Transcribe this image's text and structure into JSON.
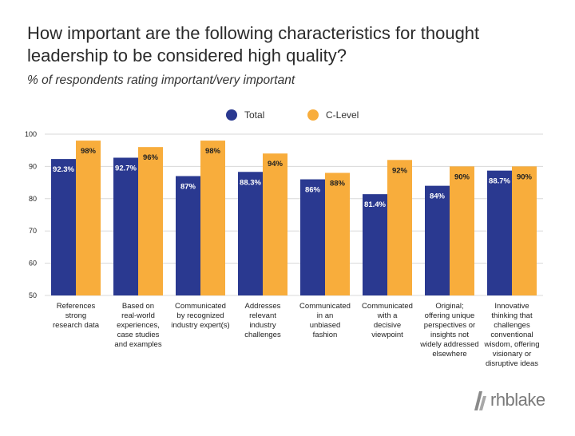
{
  "title": "How important are the following characteristics for thought leadership to be considered high quality?",
  "subtitle": "% of respondents rating important/very important",
  "brand": "rhblake",
  "colors": {
    "total": "#2a3990",
    "clevel": "#f8ad3c",
    "grid": "#d8d8d8"
  },
  "chart_data": {
    "type": "bar",
    "ylim": [
      50,
      100
    ],
    "yticks": [
      "50",
      "60",
      "70",
      "80",
      "90",
      "100"
    ],
    "categories": [
      [
        "References",
        "strong",
        "research data"
      ],
      [
        "Based on",
        "real-world",
        "experiences,",
        "case studies",
        "and examples"
      ],
      [
        "Communicated",
        "by recognized",
        "industry expert(s)"
      ],
      [
        "Addresses",
        "relevant",
        "industry",
        "challenges"
      ],
      [
        "Communicated",
        "in an",
        "unbiased",
        "fashion"
      ],
      [
        "Communicated",
        "with a",
        "decisive",
        "viewpoint"
      ],
      [
        "Original;",
        "offering unique",
        "perspectives or",
        "insights not",
        "widely addressed",
        "elsewhere"
      ],
      [
        "Innovative",
        "thinking that",
        "challenges",
        "conventional",
        "wisdom, offering",
        "visionary or",
        "disruptive ideas"
      ]
    ],
    "series": [
      {
        "name": "Total",
        "values": [
          92.3,
          92.7,
          87,
          88.3,
          86,
          81.4,
          84,
          88.7
        ],
        "labels": [
          "92.3%",
          "92.7%",
          "87%",
          "88.3%",
          "86%",
          "81.4%",
          "84%",
          "88.7%"
        ]
      },
      {
        "name": "C-Level",
        "values": [
          98,
          96,
          98,
          94,
          88,
          92,
          90,
          90
        ],
        "labels": [
          "98%",
          "96%",
          "98%",
          "94%",
          "88%",
          "92%",
          "90%",
          "90%"
        ]
      }
    ],
    "grid": true,
    "legend": "top-center"
  }
}
